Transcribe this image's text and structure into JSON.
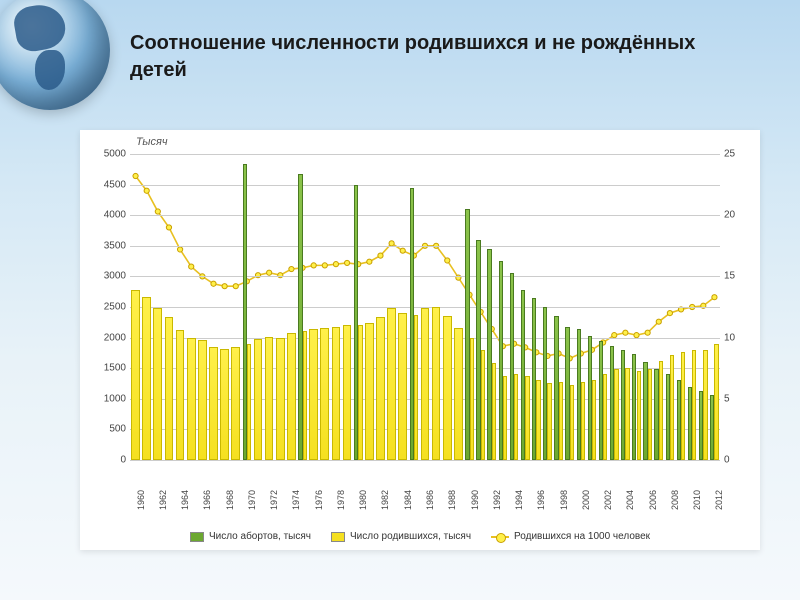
{
  "title": "Соотношение численности родившихся и не рождённых детей",
  "chart": {
    "type": "bar+line",
    "axis_title": "Тысяч",
    "background_color": "#ffffff",
    "grid_color": "#cccccc",
    "left_axis": {
      "min": 0,
      "max": 5000,
      "step": 500
    },
    "right_axis": {
      "min": 0,
      "max": 25,
      "step": 5
    },
    "years": [
      1960,
      1961,
      1962,
      1963,
      1964,
      1965,
      1966,
      1967,
      1968,
      1969,
      1970,
      1971,
      1972,
      1973,
      1974,
      1975,
      1976,
      1977,
      1978,
      1979,
      1980,
      1981,
      1982,
      1983,
      1984,
      1985,
      1986,
      1987,
      1988,
      1989,
      1990,
      1991,
      1992,
      1993,
      1994,
      1995,
      1996,
      1997,
      1998,
      1999,
      2000,
      2001,
      2002,
      2003,
      2004,
      2005,
      2006,
      2007,
      2008,
      2009,
      2010,
      2011,
      2012
    ],
    "births_thousands": [
      2780,
      2660,
      2480,
      2330,
      2120,
      1990,
      1960,
      1850,
      1820,
      1850,
      1900,
      1970,
      2010,
      1990,
      2080,
      2100,
      2140,
      2150,
      2180,
      2200,
      2200,
      2240,
      2330,
      2480,
      2410,
      2370,
      2490,
      2500,
      2350,
      2160,
      1990,
      1790,
      1590,
      1380,
      1410,
      1370,
      1300,
      1260,
      1280,
      1220,
      1270,
      1310,
      1400,
      1480,
      1500,
      1460,
      1480,
      1610,
      1720,
      1760,
      1790,
      1800,
      1900
    ],
    "abortions_thousands": [
      null,
      null,
      null,
      null,
      null,
      null,
      null,
      null,
      null,
      null,
      4840,
      null,
      null,
      null,
      null,
      4680,
      null,
      null,
      null,
      null,
      4500,
      null,
      null,
      null,
      null,
      4450,
      null,
      null,
      null,
      null,
      4100,
      3600,
      3450,
      3250,
      3050,
      2770,
      2650,
      2500,
      2350,
      2180,
      2140,
      2020,
      1940,
      1870,
      1800,
      1730,
      1600,
      1480,
      1400,
      1300,
      1190,
      1120,
      1060
    ],
    "births_per_1000": [
      23.2,
      22.0,
      20.3,
      19.0,
      17.2,
      15.8,
      15.0,
      14.4,
      14.2,
      14.2,
      14.6,
      15.1,
      15.3,
      15.1,
      15.6,
      15.7,
      15.9,
      15.9,
      16.0,
      16.1,
      16.0,
      16.2,
      16.7,
      17.7,
      17.1,
      16.7,
      17.5,
      17.5,
      16.3,
      14.9,
      13.5,
      12.1,
      10.7,
      9.3,
      9.5,
      9.2,
      8.8,
      8.5,
      8.7,
      8.3,
      8.7,
      9.0,
      9.6,
      10.2,
      10.4,
      10.2,
      10.4,
      11.3,
      12.0,
      12.3,
      12.5,
      12.6,
      13.3
    ],
    "colors": {
      "births_bar": "#f5e020",
      "births_bar_border": "#c9b800",
      "abortions_bar": "#6ca830",
      "abortions_bar_border": "#4a7a20",
      "line": "#e8c020",
      "marker_fill": "#fff04a",
      "marker_stroke": "#c9a000"
    },
    "x_tick_step": 2,
    "bar_width_ratio": 0.78,
    "legend": {
      "abortions": "Число абортов, тысяч",
      "births": "Число родившихся, тысяч",
      "per1000": "Родившихся на 1000 человек"
    }
  }
}
